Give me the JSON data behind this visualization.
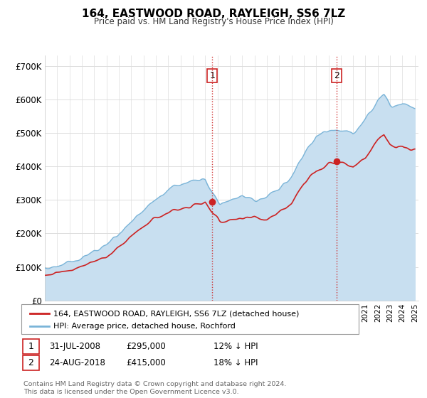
{
  "title": "164, EASTWOOD ROAD, RAYLEIGH, SS6 7LZ",
  "subtitle": "Price paid vs. HM Land Registry's House Price Index (HPI)",
  "legend_line1": "164, EASTWOOD ROAD, RAYLEIGH, SS6 7LZ (detached house)",
  "legend_line2": "HPI: Average price, detached house, Rochford",
  "annotation1_date": "31-JUL-2008",
  "annotation1_price": "£295,000",
  "annotation1_hpi": "12% ↓ HPI",
  "annotation2_date": "24-AUG-2018",
  "annotation2_price": "£415,000",
  "annotation2_hpi": "18% ↓ HPI",
  "footer": "Contains HM Land Registry data © Crown copyright and database right 2024.\nThis data is licensed under the Open Government Licence v3.0.",
  "hpi_color": "#7ab4d8",
  "hpi_fill_color": "#c8dff0",
  "price_color": "#cc2222",
  "vline_color": "#cc2222",
  "background_color": "#ffffff",
  "plot_bg_color": "#ffffff",
  "ylim": [
    0,
    730000
  ],
  "yticks": [
    0,
    100000,
    200000,
    300000,
    400000,
    500000,
    600000,
    700000
  ],
  "ytick_labels": [
    "£0",
    "£100K",
    "£200K",
    "£300K",
    "£400K",
    "£500K",
    "£600K",
    "£700K"
  ],
  "purchase1_year": 2008.58,
  "purchase1_value": 295000,
  "purchase2_year": 2018.65,
  "purchase2_value": 415000
}
